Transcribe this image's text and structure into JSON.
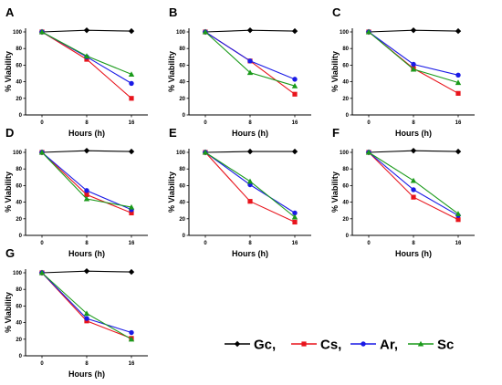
{
  "figure": {
    "legend": {
      "entries": [
        {
          "label": "Gc,",
          "color": "#000000",
          "marker": "diamond"
        },
        {
          "label": "Cs,",
          "color": "#e8141c",
          "marker": "square"
        },
        {
          "label": "Ar,",
          "color": "#1a1ae6",
          "marker": "circle"
        },
        {
          "label": "Sc",
          "color": "#1a9a1a",
          "marker": "triangle"
        }
      ]
    }
  },
  "chart_data": [
    {
      "type": "line",
      "panel": "A",
      "x": [
        0,
        8,
        16
      ],
      "x_tick_labels": [
        "0",
        "8",
        "16"
      ],
      "xlabel": "Hours (h)",
      "ylabel": "% Viability",
      "ylim": [
        0,
        100
      ],
      "y_ticks": [
        0,
        20,
        40,
        60,
        80,
        100
      ],
      "series": [
        {
          "name": "Gc",
          "color": "#000000",
          "marker": "diamond",
          "values": [
            100,
            102,
            101
          ]
        },
        {
          "name": "Cs",
          "color": "#e8141c",
          "marker": "square",
          "values": [
            100,
            67,
            20
          ]
        },
        {
          "name": "Ar",
          "color": "#1a1ae6",
          "marker": "circle",
          "values": [
            100,
            70,
            38
          ]
        },
        {
          "name": "Sc",
          "color": "#1a9a1a",
          "marker": "triangle",
          "values": [
            100,
            71,
            49
          ]
        }
      ]
    },
    {
      "type": "line",
      "panel": "B",
      "x": [
        0,
        8,
        16
      ],
      "x_tick_labels": [
        "0",
        "8",
        "16"
      ],
      "xlabel": "Hours (h)",
      "ylabel": "% Viability",
      "ylim": [
        0,
        100
      ],
      "y_ticks": [
        0,
        20,
        40,
        60,
        80,
        100
      ],
      "series": [
        {
          "name": "Gc",
          "color": "#000000",
          "marker": "diamond",
          "values": [
            100,
            102,
            101
          ]
        },
        {
          "name": "Cs",
          "color": "#e8141c",
          "marker": "square",
          "values": [
            100,
            65,
            25
          ]
        },
        {
          "name": "Ar",
          "color": "#1a1ae6",
          "marker": "circle",
          "values": [
            100,
            65,
            43
          ]
        },
        {
          "name": "Sc",
          "color": "#1a9a1a",
          "marker": "triangle",
          "values": [
            100,
            51,
            35
          ]
        }
      ]
    },
    {
      "type": "line",
      "panel": "C",
      "x": [
        0,
        8,
        16
      ],
      "x_tick_labels": [
        "0",
        "8",
        "16"
      ],
      "xlabel": "Hours (h)",
      "ylabel": "% Viability",
      "ylim": [
        0,
        100
      ],
      "y_ticks": [
        0,
        20,
        40,
        60,
        80,
        100
      ],
      "series": [
        {
          "name": "Gc",
          "color": "#000000",
          "marker": "diamond",
          "values": [
            100,
            102,
            101
          ]
        },
        {
          "name": "Cs",
          "color": "#e8141c",
          "marker": "square",
          "values": [
            100,
            56,
            26
          ]
        },
        {
          "name": "Ar",
          "color": "#1a1ae6",
          "marker": "circle",
          "values": [
            100,
            61,
            48
          ]
        },
        {
          "name": "Sc",
          "color": "#1a9a1a",
          "marker": "triangle",
          "values": [
            100,
            55,
            39
          ]
        }
      ]
    },
    {
      "type": "line",
      "panel": "D",
      "x": [
        0,
        8,
        16
      ],
      "x_tick_labels": [
        "0",
        "8",
        "16"
      ],
      "xlabel": "Hours (h)",
      "ylabel": "% Viability",
      "ylim": [
        0,
        100
      ],
      "y_ticks": [
        0,
        20,
        40,
        60,
        80,
        100
      ],
      "series": [
        {
          "name": "Gc",
          "color": "#000000",
          "marker": "diamond",
          "values": [
            100,
            102,
            101
          ]
        },
        {
          "name": "Cs",
          "color": "#e8141c",
          "marker": "square",
          "values": [
            100,
            49,
            27
          ]
        },
        {
          "name": "Ar",
          "color": "#1a1ae6",
          "marker": "circle",
          "values": [
            100,
            54,
            31
          ]
        },
        {
          "name": "Sc",
          "color": "#1a9a1a",
          "marker": "triangle",
          "values": [
            100,
            44,
            34
          ]
        }
      ]
    },
    {
      "type": "line",
      "panel": "E",
      "x": [
        0,
        8,
        16
      ],
      "x_tick_labels": [
        "0",
        "8",
        "16"
      ],
      "xlabel": "Hours (h)",
      "ylabel": "% Viability",
      "ylim": [
        0,
        100
      ],
      "y_ticks": [
        0,
        20,
        40,
        60,
        80,
        100
      ],
      "series": [
        {
          "name": "Gc",
          "color": "#000000",
          "marker": "diamond",
          "values": [
            100,
            101,
            101
          ]
        },
        {
          "name": "Cs",
          "color": "#e8141c",
          "marker": "square",
          "values": [
            100,
            41,
            16
          ]
        },
        {
          "name": "Ar",
          "color": "#1a1ae6",
          "marker": "circle",
          "values": [
            100,
            61,
            27
          ]
        },
        {
          "name": "Sc",
          "color": "#1a9a1a",
          "marker": "triangle",
          "values": [
            100,
            65,
            22
          ]
        }
      ]
    },
    {
      "type": "line",
      "panel": "F",
      "x": [
        0,
        8,
        16
      ],
      "x_tick_labels": [
        "0",
        "8",
        "16"
      ],
      "xlabel": "Hours (h)",
      "ylabel": "% Viability",
      "ylim": [
        0,
        100
      ],
      "y_ticks": [
        0,
        20,
        40,
        60,
        80,
        100
      ],
      "series": [
        {
          "name": "Gc",
          "color": "#000000",
          "marker": "diamond",
          "values": [
            100,
            102,
            101
          ]
        },
        {
          "name": "Cs",
          "color": "#e8141c",
          "marker": "square",
          "values": [
            100,
            46,
            19
          ]
        },
        {
          "name": "Ar",
          "color": "#1a1ae6",
          "marker": "circle",
          "values": [
            100,
            55,
            24
          ]
        },
        {
          "name": "Sc",
          "color": "#1a9a1a",
          "marker": "triangle",
          "values": [
            100,
            66,
            26
          ]
        }
      ]
    },
    {
      "type": "line",
      "panel": "G",
      "x": [
        0,
        8,
        16
      ],
      "x_tick_labels": [
        "0",
        "8",
        "16"
      ],
      "xlabel": "Hours (h)",
      "ylabel": "% Viability",
      "ylim": [
        0,
        100
      ],
      "y_ticks": [
        0,
        20,
        40,
        60,
        80,
        100
      ],
      "series": [
        {
          "name": "Gc",
          "color": "#000000",
          "marker": "diamond",
          "values": [
            100,
            102,
            101
          ]
        },
        {
          "name": "Cs",
          "color": "#e8141c",
          "marker": "square",
          "values": [
            100,
            42,
            21
          ]
        },
        {
          "name": "Ar",
          "color": "#1a1ae6",
          "marker": "circle",
          "values": [
            100,
            45,
            28
          ]
        },
        {
          "name": "Sc",
          "color": "#1a9a1a",
          "marker": "triangle",
          "values": [
            100,
            51,
            20
          ]
        }
      ]
    }
  ]
}
